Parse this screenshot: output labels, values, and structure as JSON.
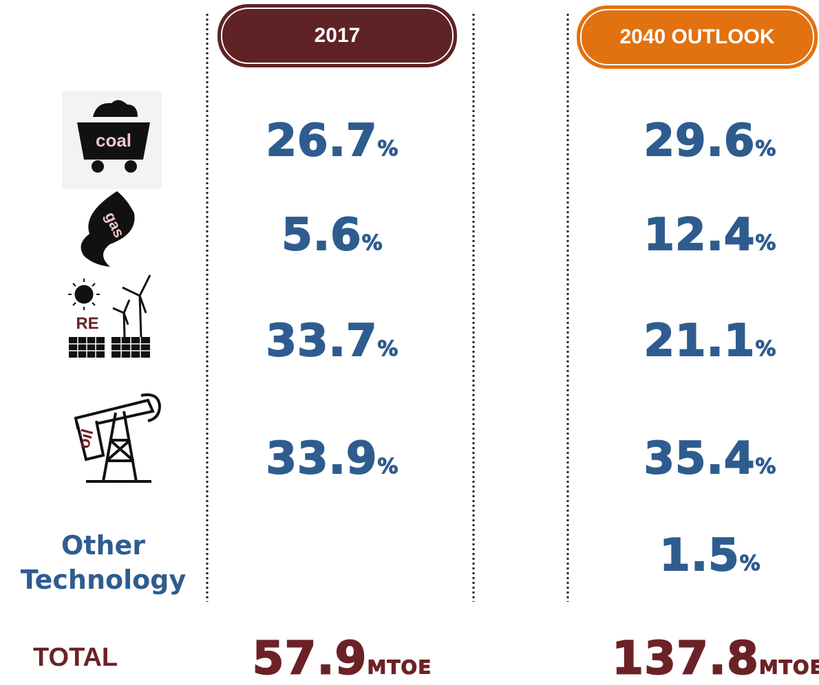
{
  "header": {
    "columns": [
      "2017",
      "2040 OUTLOOK"
    ]
  },
  "rows": [
    {
      "label": "coal",
      "values": [
        {
          "value": "26.7",
          "unit": "%"
        },
        {
          "value": "29.6",
          "unit": "%"
        }
      ]
    },
    {
      "label": "gas",
      "values": [
        {
          "value": "5.6",
          "unit": "%"
        },
        {
          "value": "12.4",
          "unit": "%"
        }
      ]
    },
    {
      "label": "RE",
      "values": [
        {
          "value": "33.7",
          "unit": "%"
        },
        {
          "value": "21.1",
          "unit": "%"
        }
      ]
    },
    {
      "label": "oil",
      "values": [
        {
          "value": "33.9",
          "unit": "%"
        },
        {
          "value": "35.4",
          "unit": "%"
        }
      ]
    },
    {
      "label": "Other Technology",
      "values": [
        null,
        {
          "value": "1.5",
          "unit": "%"
        }
      ]
    }
  ],
  "total": {
    "label": "TOTAL",
    "values": [
      {
        "value": "57.9",
        "unit": "MTOE"
      },
      {
        "value": "137.8",
        "unit": "MTOE"
      }
    ]
  }
}
